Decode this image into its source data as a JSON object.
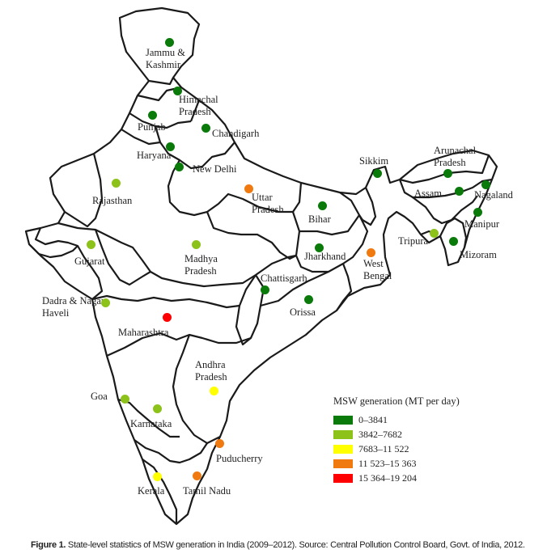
{
  "map": {
    "states": [
      {
        "name": "Jammu & Kashmir",
        "label": "Jammu &\nKashmir",
        "category": 0
      },
      {
        "name": "Himachal Pradesh",
        "label": "Himachal\nPradesh",
        "category": 0
      },
      {
        "name": "Punjab",
        "label": "Punjab",
        "category": 0
      },
      {
        "name": "Chandigarh",
        "label": "Chandigarh",
        "category": 0
      },
      {
        "name": "Haryana",
        "label": "Haryana",
        "category": 0
      },
      {
        "name": "New Delhi",
        "label": "New Delhi",
        "category": 0
      },
      {
        "name": "Rajasthan",
        "label": "Rajasthan",
        "category": 1
      },
      {
        "name": "Uttar Pradesh",
        "label": "Uttar\nPradesh",
        "category": 3
      },
      {
        "name": "Sikkim",
        "label": "Sikkim",
        "category": 0
      },
      {
        "name": "Arunachal Pradesh",
        "label": "Arunachal\nPradesh",
        "category": 0
      },
      {
        "name": "Assam",
        "label": "Assam",
        "category": 0
      },
      {
        "name": "Nagaland",
        "label": "Nagaland",
        "category": 0
      },
      {
        "name": "Manipur",
        "label": "Manipur",
        "category": 0
      },
      {
        "name": "Mizoram",
        "label": "Mizoram",
        "category": 0
      },
      {
        "name": "Tripura",
        "label": "Tripura",
        "category": 1
      },
      {
        "name": "Bihar",
        "label": "Bihar",
        "category": 0
      },
      {
        "name": "Jharkhand",
        "label": "Jharkhand",
        "category": 0
      },
      {
        "name": "West Bengal",
        "label": "West\nBengal",
        "category": 3
      },
      {
        "name": "Gujarat",
        "label": "Gujarat",
        "category": 1
      },
      {
        "name": "Madhya Pradesh",
        "label": "Madhya\nPradesh",
        "category": 1
      },
      {
        "name": "Chattisgarh",
        "label": "Chattisgarh",
        "category": 0
      },
      {
        "name": "Orissa",
        "label": "Orissa",
        "category": 0
      },
      {
        "name": "Dadra & Nagar Haveli",
        "label": "Dadra & Nagar\nHaveli",
        "category": 1
      },
      {
        "name": "Maharashtra",
        "label": "Maharashtra",
        "category": 4
      },
      {
        "name": "Andhra Pradesh",
        "label": "Andhra\nPradesh",
        "category": 2
      },
      {
        "name": "Goa",
        "label": "Goa",
        "category": 1
      },
      {
        "name": "Karnataka",
        "label": "Karnataka",
        "category": 1
      },
      {
        "name": "Puducherry",
        "label": "Puducherry",
        "category": 3
      },
      {
        "name": "Kerala",
        "label": "Kerala",
        "category": 2
      },
      {
        "name": "Tamil Nadu",
        "label": "Tamil Nadu",
        "category": 3
      }
    ]
  },
  "legend": {
    "title": "MSW generation (MT per day)",
    "items": [
      {
        "label": "0–3841",
        "color": "#0a7a0a"
      },
      {
        "label": "3842–7682",
        "color": "#8cc21a"
      },
      {
        "label": "7683–11 522",
        "color": "#ffff00"
      },
      {
        "label": "11 523–15 363",
        "color": "#f07a10"
      },
      {
        "label": "15 364–19 204",
        "color": "#ff0000"
      }
    ]
  },
  "caption": {
    "figure_label": "Figure 1.",
    "text": " State-level statistics of MSW generation in India (2009–2012). Source: Central Pollution Control Board, Govt. of India, 2012."
  }
}
